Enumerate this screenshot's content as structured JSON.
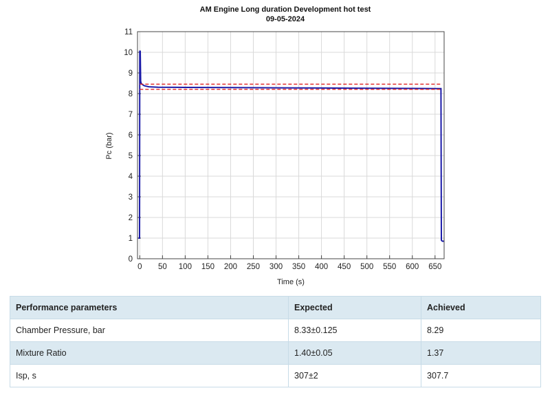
{
  "chart_data": {
    "type": "line",
    "title": "AM Engine Long duration Development hot test",
    "subtitle": "09-05-2024",
    "xlabel": "Time (s)",
    "ylabel": "Pc (bar)",
    "xlim": [
      -5,
      670
    ],
    "ylim": [
      0,
      11
    ],
    "xticks": [
      0,
      50,
      100,
      150,
      200,
      250,
      300,
      350,
      400,
      450,
      500,
      550,
      600,
      650
    ],
    "yticks": [
      0,
      1,
      2,
      3,
      4,
      5,
      6,
      7,
      8,
      9,
      10,
      11
    ],
    "grid": true,
    "series": [
      {
        "name": "Pc",
        "color": "#1a1aa8",
        "style": "solid",
        "x": [
          -3,
          -0.5,
          0,
          1,
          2,
          3,
          5,
          10,
          20,
          40,
          100,
          200,
          300,
          400,
          500,
          600,
          663,
          664,
          666,
          670
        ],
        "y": [
          1.0,
          1.0,
          10.05,
          10.05,
          8.6,
          8.5,
          8.45,
          8.38,
          8.33,
          8.31,
          8.3,
          8.29,
          8.28,
          8.27,
          8.26,
          8.25,
          8.24,
          0.9,
          0.85,
          0.85
        ]
      },
      {
        "name": "Upper limit",
        "color": "#e02424",
        "style": "dashed",
        "x": [
          0,
          666
        ],
        "y": [
          8.455,
          8.455
        ]
      },
      {
        "name": "Lower limit",
        "color": "#e02424",
        "style": "dashed",
        "x": [
          0,
          666
        ],
        "y": [
          8.205,
          8.205
        ]
      }
    ]
  },
  "table": {
    "headers": [
      "Performance parameters",
      "Expected",
      "Achieved"
    ],
    "rows": [
      [
        "Chamber Pressure, bar",
        "8.33±0.125",
        "8.29"
      ],
      [
        "Mixture Ratio",
        "1.40±0.05",
        "1.37"
      ],
      [
        "Isp, s",
        "307±2",
        "307.7"
      ]
    ]
  }
}
